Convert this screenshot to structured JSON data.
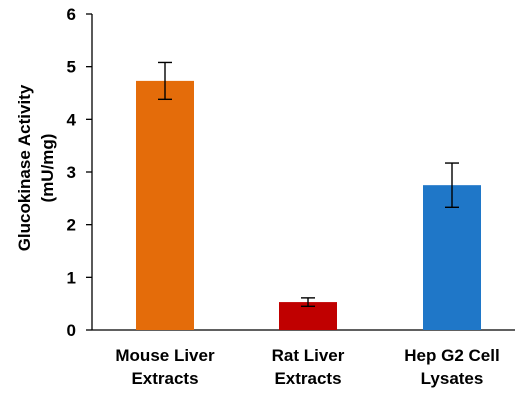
{
  "chart_data": {
    "type": "bar",
    "categories": [
      [
        "Mouse Liver",
        "Extracts"
      ],
      [
        "Rat Liver",
        "Extracts"
      ],
      [
        "Hep G2 Cell",
        "Lysates"
      ]
    ],
    "values": [
      4.73,
      0.53,
      2.75
    ],
    "error": [
      0.35,
      0.08,
      0.42
    ],
    "colors": [
      "#E46C0A",
      "#C00000",
      "#1F77C8"
    ],
    "ylabel": [
      "Glucokinase Activity",
      "(mU/mg)"
    ],
    "ylim": [
      0,
      6
    ],
    "yticks": [
      0,
      1,
      2,
      3,
      4,
      5,
      6
    ],
    "grid": false,
    "legend": "none"
  }
}
